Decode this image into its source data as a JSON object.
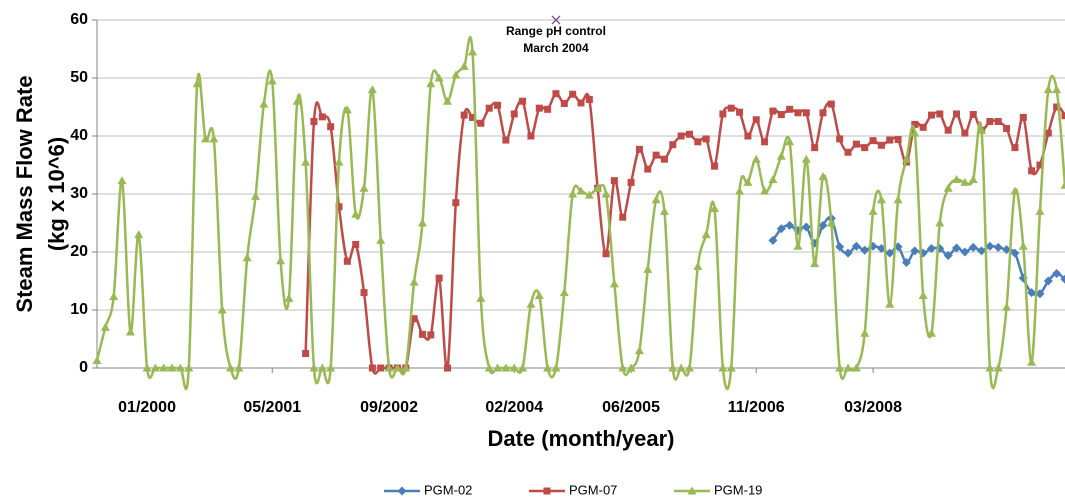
{
  "chart_data": {
    "type": "line",
    "x_label": "Date (month/year)",
    "y_label": [
      "Steam Mass Flow Rate",
      "(kg x 10^6)"
    ],
    "categories": [
      null,
      null,
      null,
      null,
      null,
      null,
      "01/2000",
      null,
      null,
      null,
      null,
      null,
      null,
      null,
      null,
      null,
      null,
      null,
      null,
      null,
      null,
      "05/2001",
      null,
      null,
      null,
      null,
      null,
      null,
      null,
      null,
      null,
      null,
      null,
      null,
      null,
      "09/2002",
      null,
      null,
      null,
      null,
      null,
      null,
      null,
      null,
      null,
      null,
      null,
      null,
      null,
      null,
      "02/2004",
      null,
      null,
      null,
      null,
      null,
      null,
      null,
      null,
      null,
      null,
      null,
      null,
      null,
      "06/2005",
      null,
      null,
      null,
      null,
      null,
      null,
      null,
      null,
      null,
      null,
      null,
      null,
      null,
      null,
      "11/2006",
      null,
      null,
      null,
      null,
      null,
      null,
      null,
      null,
      null,
      null,
      null,
      null,
      null,
      "03/2008",
      null,
      null,
      null,
      null,
      null,
      null,
      null,
      null,
      null,
      null,
      null,
      null,
      null,
      null,
      null,
      null,
      null,
      null,
      null,
      null,
      null,
      null,
      null
    ],
    "series": [
      {
        "name": "PGM-02",
        "color": "#4a7ebb",
        "marker": "diamond",
        "values": [
          null,
          null,
          null,
          null,
          null,
          null,
          null,
          null,
          null,
          null,
          null,
          null,
          null,
          null,
          null,
          null,
          null,
          null,
          null,
          null,
          null,
          null,
          null,
          null,
          null,
          null,
          null,
          null,
          null,
          null,
          null,
          null,
          null,
          null,
          null,
          null,
          null,
          null,
          null,
          null,
          null,
          null,
          null,
          null,
          null,
          null,
          null,
          null,
          null,
          null,
          null,
          null,
          null,
          null,
          null,
          null,
          null,
          null,
          null,
          null,
          null,
          null,
          null,
          null,
          null,
          null,
          null,
          null,
          null,
          null,
          null,
          null,
          null,
          null,
          null,
          null,
          null,
          null,
          null,
          null,
          null,
          22,
          24,
          24.6,
          23.7,
          24.3,
          21.5,
          24.6,
          25.8,
          20.9,
          19.8,
          21,
          20.3,
          21,
          20.6,
          19.8,
          20.9,
          18.2,
          20.2,
          19.8,
          20.6,
          20.6,
          19.4,
          20.7,
          20,
          20.8,
          20.2,
          21,
          20.8,
          20.4,
          19.8,
          15.5,
          13,
          12.8,
          15,
          16.3,
          15.3
        ]
      },
      {
        "name": "PGM-07",
        "color": "#be4b48",
        "marker": "square",
        "values": [
          null,
          null,
          null,
          null,
          null,
          null,
          null,
          null,
          null,
          null,
          null,
          null,
          null,
          null,
          null,
          null,
          null,
          null,
          null,
          null,
          null,
          null,
          null,
          null,
          null,
          2.5,
          42.5,
          43.3,
          41.6,
          27.8,
          18.4,
          21.3,
          13,
          0,
          0,
          0,
          0,
          0,
          8.5,
          5.8,
          5.7,
          15.5,
          0,
          28.5,
          43.6,
          43.2,
          42.2,
          44.8,
          45.3,
          39.3,
          43.8,
          46,
          40,
          44.8,
          44.6,
          47.3,
          45.6,
          47.2,
          45.7,
          46.3,
          31,
          19.7,
          32.3,
          26,
          32,
          37.7,
          34.3,
          36.7,
          36,
          38.5,
          40,
          40.3,
          39,
          39.5,
          34.8,
          43.8,
          44.8,
          44.1,
          40,
          42.8,
          39,
          44.3,
          43.7,
          44.6,
          44,
          44,
          38,
          44,
          45.5,
          39.5,
          37.2,
          38.6,
          38,
          39.2,
          38.4,
          39.3,
          39.4,
          35.5,
          42,
          41.5,
          43.6,
          43.8,
          41,
          43.8,
          40.5,
          43.7,
          41,
          42.5,
          42.5,
          41.3,
          38,
          43.2,
          34,
          35,
          40.5,
          45,
          43.5
        ]
      },
      {
        "name": "PGM-19",
        "color": "#98b954",
        "marker": "triangle",
        "values": [
          1.3,
          7,
          12.3,
          32.3,
          6.2,
          23,
          0,
          0,
          0,
          0,
          0,
          0,
          49,
          39.5,
          39.5,
          10,
          0,
          0,
          19,
          29.6,
          45.5,
          49.5,
          18.5,
          12,
          46,
          35.5,
          0,
          0,
          0,
          35.5,
          44.5,
          26.5,
          31,
          48,
          22,
          0,
          0,
          0,
          14.8,
          25,
          49,
          50,
          46,
          50.5,
          52,
          54.5,
          12,
          0,
          0,
          0,
          0,
          0,
          11,
          12.5,
          0,
          0,
          13,
          30,
          30.5,
          29.8,
          31,
          30,
          14.5,
          0,
          0,
          3,
          17,
          29,
          27,
          0,
          0,
          0,
          17.5,
          23,
          27.5,
          0,
          0,
          30.5,
          32,
          36,
          30.5,
          32.5,
          36.5,
          39,
          21,
          36,
          18,
          33,
          25,
          0,
          0,
          0,
          6,
          27,
          29,
          11,
          29,
          36,
          40.5,
          12.5,
          6,
          25,
          31,
          32.5,
          32,
          32.5,
          41,
          0,
          0,
          10.5,
          30.5,
          21,
          1,
          27,
          48,
          48,
          31.5
        ]
      }
    ],
    "annotation": {
      "lines": [
        "Range pH control",
        "March 2004"
      ],
      "category_index": 55,
      "value": 60,
      "color": "#7b4fa0"
    },
    "ylim": [
      0,
      60
    ],
    "yticks": [
      0,
      10,
      20,
      30,
      40,
      50,
      60
    ],
    "grid": true,
    "smooth": true,
    "legend": "bottom"
  }
}
